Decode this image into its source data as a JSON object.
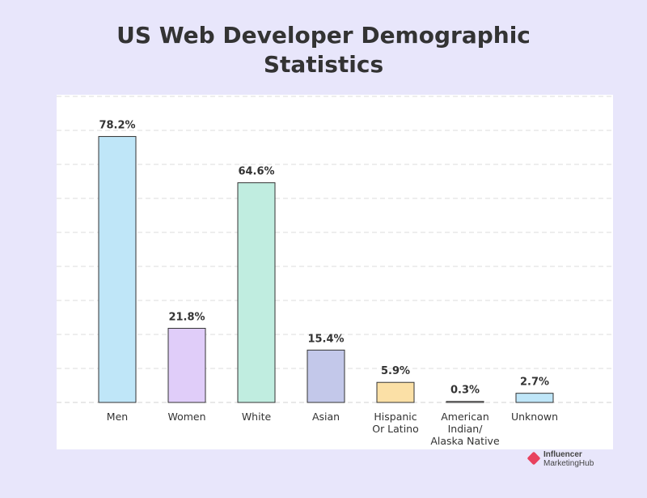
{
  "chart_data": {
    "type": "bar",
    "title_lines": [
      "US Web Developer Demographic",
      "Statistics"
    ],
    "categories": [
      [
        "Men"
      ],
      [
        "Women"
      ],
      [
        "White"
      ],
      [
        "Asian"
      ],
      [
        "Hispanic",
        "Or Latino"
      ],
      [
        "American",
        "Indian/",
        "Alaska Native"
      ],
      [
        "Unknown"
      ]
    ],
    "values": [
      78.2,
      21.8,
      64.6,
      15.4,
      5.9,
      0.3,
      2.7
    ],
    "value_labels": [
      "78.2%",
      "21.8%",
      "64.6%",
      "15.4%",
      "5.9%",
      "0.3%",
      "2.7%"
    ],
    "bar_colors": [
      "#bfe6f8",
      "#e0cdf9",
      "#c0ede0",
      "#c3c8ea",
      "#fbe0a6",
      "#f4eeee",
      "#bfe6f8"
    ],
    "ylim": [
      0,
      90
    ],
    "grid": true
  },
  "logo": {
    "line1": "Influencer",
    "line2": "MarketingHub"
  }
}
